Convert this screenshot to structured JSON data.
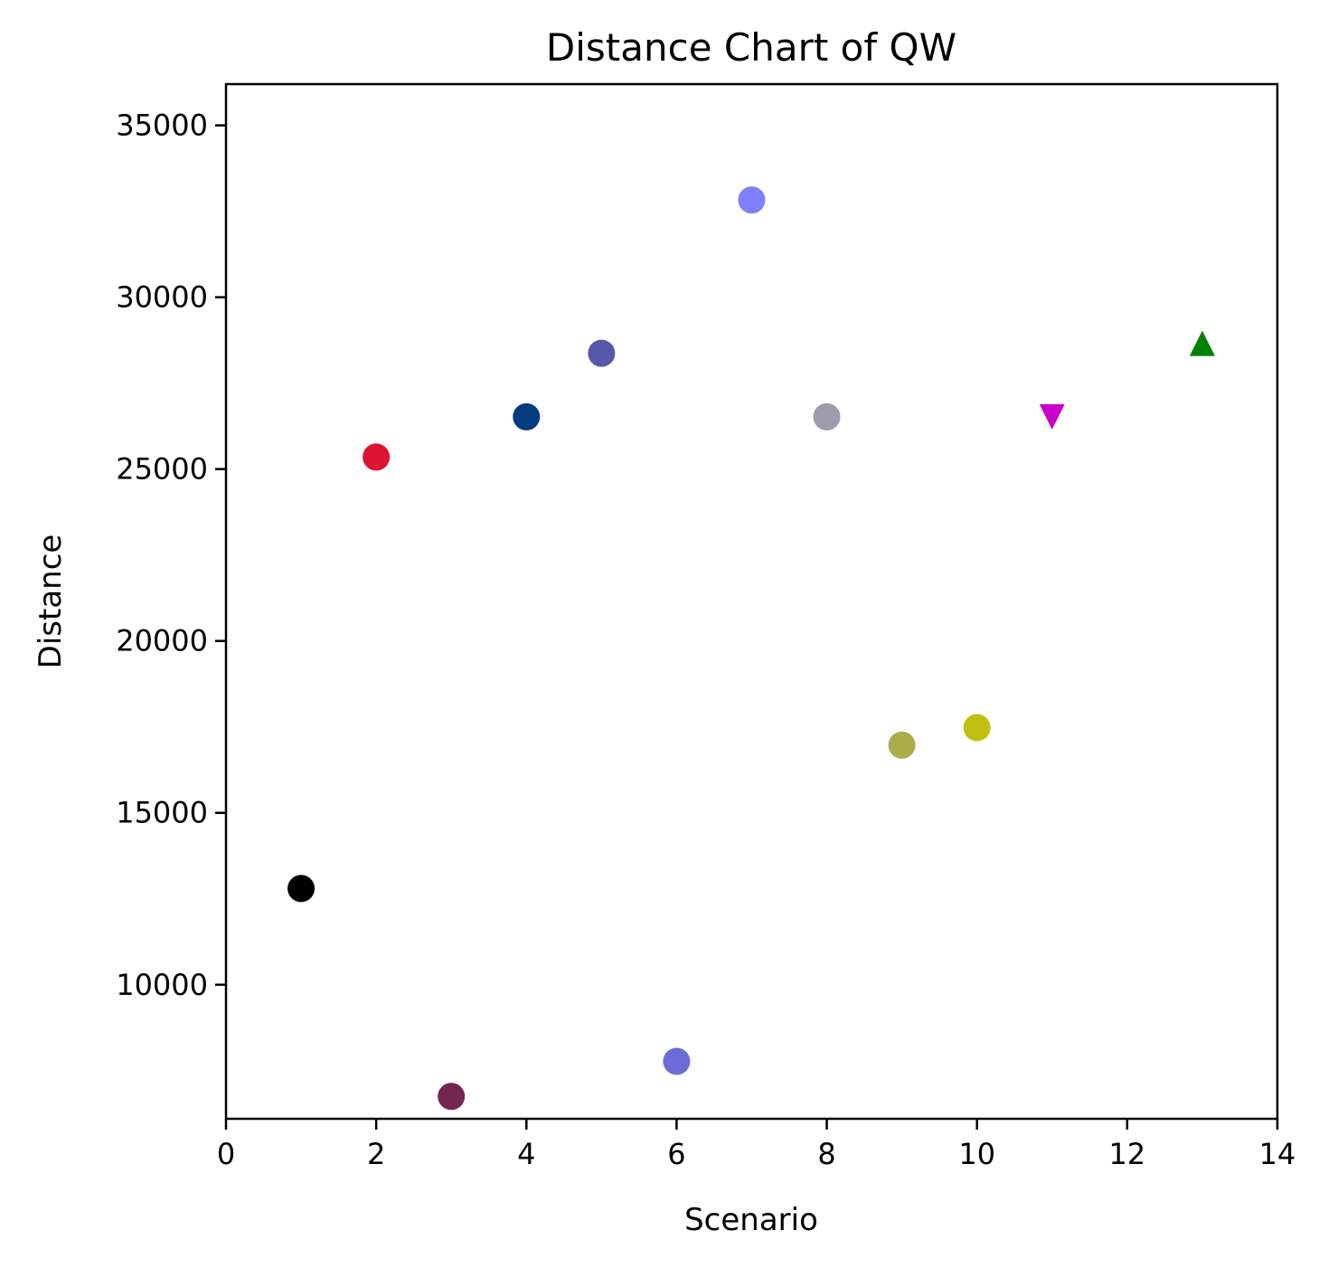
{
  "chart_data": {
    "type": "scatter",
    "title": "Distance Chart of QW",
    "xlabel": "Scenario",
    "ylabel": "Distance",
    "xlim": [
      0,
      14
    ],
    "ylim": [
      6100,
      36200
    ],
    "xticks": [
      0,
      2,
      4,
      6,
      8,
      10,
      12,
      14
    ],
    "yticks": [
      10000,
      15000,
      20000,
      25000,
      30000,
      35000
    ],
    "grid": false,
    "points": [
      {
        "x": 1,
        "y": 12800,
        "color": "#000000",
        "marker": "circle"
      },
      {
        "x": 2,
        "y": 25350,
        "color": "#dc1430",
        "marker": "circle"
      },
      {
        "x": 3,
        "y": 6750,
        "color": "#742652",
        "marker": "circle"
      },
      {
        "x": 4,
        "y": 26520,
        "color": "#043c7e",
        "marker": "circle"
      },
      {
        "x": 5,
        "y": 28370,
        "color": "#5858aa",
        "marker": "circle"
      },
      {
        "x": 6,
        "y": 7770,
        "color": "#6c6cd8",
        "marker": "circle"
      },
      {
        "x": 7,
        "y": 32830,
        "color": "#8080fc",
        "marker": "circle"
      },
      {
        "x": 8,
        "y": 26520,
        "color": "#9c9cac",
        "marker": "circle"
      },
      {
        "x": 9,
        "y": 16970,
        "color": "#acac4a",
        "marker": "circle"
      },
      {
        "x": 10,
        "y": 17480,
        "color": "#c0c010",
        "marker": "circle"
      },
      {
        "x": 11,
        "y": 26520,
        "color": "#c800c8",
        "marker": "triangle-down"
      },
      {
        "x": 13,
        "y": 28660,
        "color": "#008000",
        "marker": "triangle-up"
      }
    ]
  }
}
